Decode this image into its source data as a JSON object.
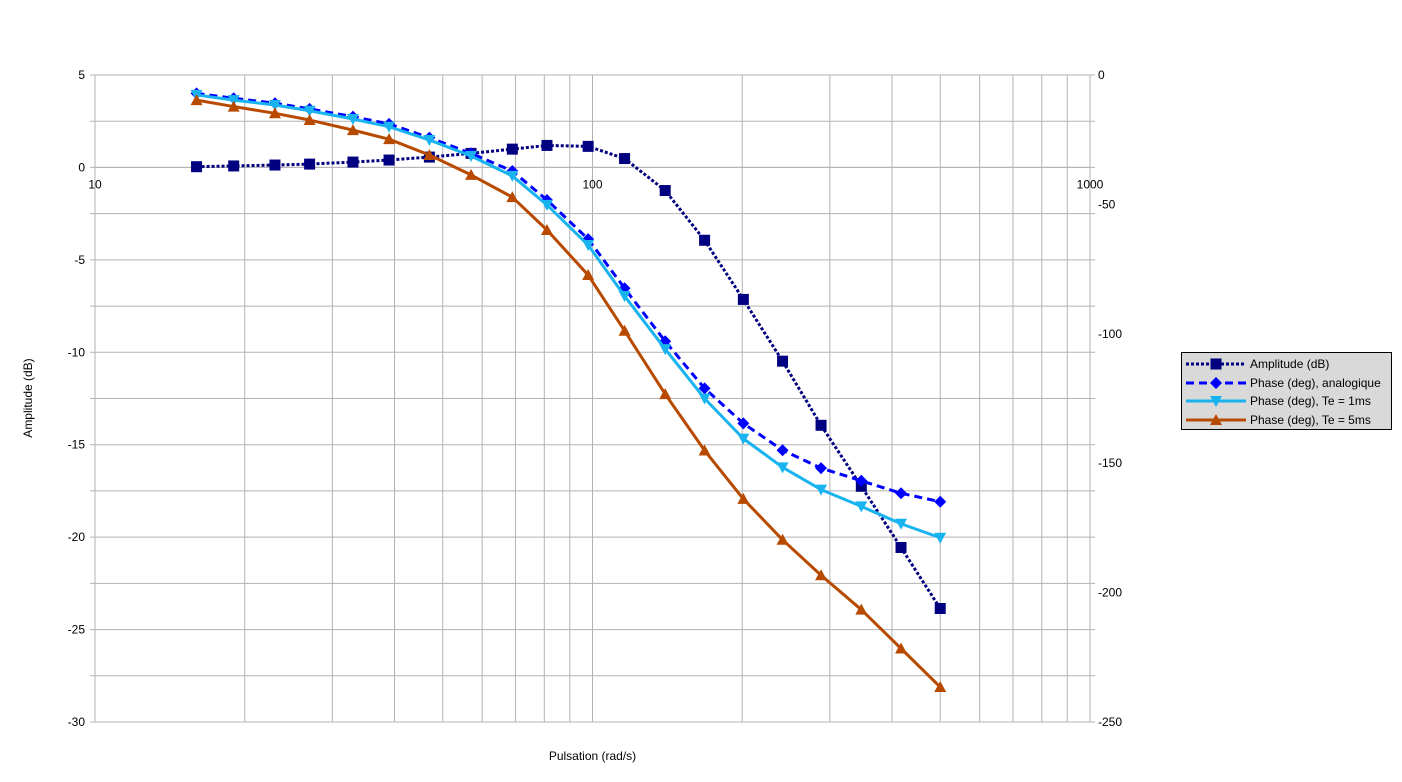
{
  "chart_data": {
    "type": "line",
    "title": "",
    "xlabel": "Pulsation (rad/s)",
    "ylabel": "Amplitude (dB)",
    "y2label": "",
    "xscale": "log",
    "xlim": [
      10,
      1000
    ],
    "ylim": [
      -30,
      5
    ],
    "y2lim": [
      -250,
      0
    ],
    "x_ticks": [
      "10",
      "100",
      "1000"
    ],
    "y_ticks": [
      "5",
      "0",
      "-5",
      "-10",
      "-15",
      "-20",
      "-25",
      "-30"
    ],
    "y2_ticks": [
      "0",
      "-50",
      "-100",
      "-150",
      "-200",
      "-250"
    ],
    "grid": true,
    "legend_position": "right",
    "x": [
      16,
      19,
      23,
      27,
      33,
      39,
      47,
      57,
      69,
      81,
      98,
      116,
      140,
      168,
      201,
      241,
      288,
      347,
      417,
      500
    ],
    "series": [
      {
        "name": "Amplitude (dB)",
        "axis": "left",
        "color": "#000080",
        "marker": "square",
        "line": "dotted",
        "values": [
          0.04,
          0.08,
          0.13,
          0.18,
          0.29,
          0.4,
          0.56,
          0.76,
          0.99,
          1.19,
          1.14,
          0.48,
          -1.25,
          -3.94,
          -7.14,
          -10.48,
          -13.95,
          -17.25,
          -20.56,
          -23.86
        ]
      },
      {
        "name": "Phase (deg), analogique",
        "axis": "right",
        "color": "#0000ff",
        "marker": "diamond",
        "line": "dashed",
        "values": [
          -7.1,
          -9.0,
          -10.9,
          -13.1,
          -16.1,
          -18.9,
          -24.2,
          -30.3,
          -37.1,
          -48.3,
          -63.4,
          -82.4,
          -102.9,
          -121.1,
          -134.6,
          -145.0,
          -151.9,
          -156.8,
          -161.6,
          -164.9
        ]
      },
      {
        "name": "Phase (deg), Te = 1ms",
        "axis": "right",
        "color": "#19b4f0",
        "marker": "triangle-down",
        "line": "solid",
        "values": [
          -7.7,
          -9.7,
          -11.6,
          -13.8,
          -17.0,
          -20.0,
          -25.1,
          -31.3,
          -39.0,
          -50.2,
          -65.7,
          -85.4,
          -105.9,
          -125.0,
          -140.5,
          -151.6,
          -160.2,
          -166.7,
          -173.4,
          -178.8
        ]
      },
      {
        "name": "Phase (deg), Te = 5ms",
        "axis": "right",
        "color": "#b84a00",
        "marker": "triangle-up",
        "line": "solid",
        "values": [
          -9.7,
          -12.2,
          -14.8,
          -17.4,
          -21.3,
          -24.8,
          -30.9,
          -38.6,
          -47.2,
          -59.9,
          -77.3,
          -98.8,
          -123.3,
          -145.1,
          -163.8,
          -179.6,
          -193.3,
          -206.6,
          -221.6,
          -236.5
        ]
      }
    ]
  }
}
